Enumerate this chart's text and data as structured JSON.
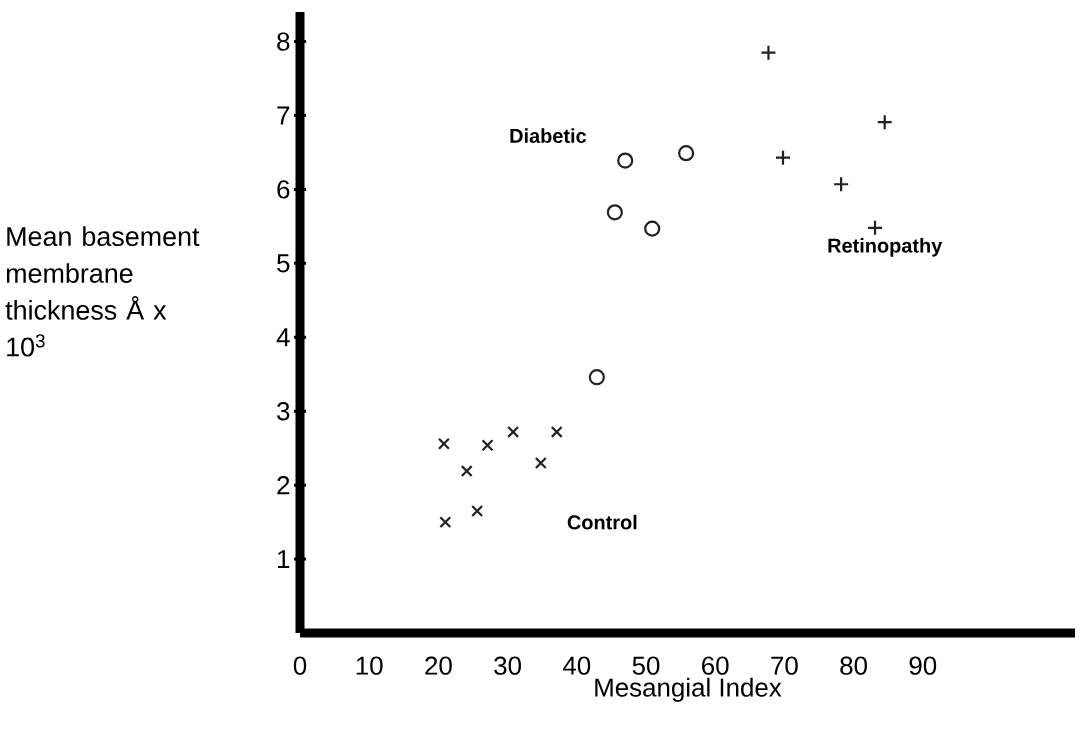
{
  "chart_data": {
    "type": "scatter",
    "xlabel": "Mesangial Index",
    "ylabel": "Mean basement membrane thickness Å x 10$^{3}$",
    "xlim": [
      0,
      112
    ],
    "ylim": [
      0,
      8.4
    ],
    "xticks": [
      0,
      10,
      20,
      30,
      40,
      50,
      60,
      70,
      80,
      90
    ],
    "yticks": [
      1,
      2,
      3,
      4,
      5,
      6,
      7,
      8
    ],
    "grid": false,
    "legend": false,
    "series": [
      {
        "name": "Control",
        "color": "#222222",
        "marker": "cross",
        "x": [
          20.8,
          24.1,
          27.1,
          30.8,
          37.1,
          34.8,
          21.0,
          25.6
        ],
        "values": [
          2.56,
          2.19,
          2.54,
          2.72,
          2.72,
          2.3,
          1.5,
          1.65
        ]
      },
      {
        "name": "Diabetic",
        "color": "#222222",
        "marker": "circle",
        "x": [
          42.9,
          47.0,
          55.8,
          45.5,
          50.9
        ],
        "values": [
          3.46,
          6.39,
          6.49,
          5.69,
          5.47
        ]
      },
      {
        "name": "Retinopathy",
        "color": "#222222",
        "marker": "plus",
        "x": [
          67.7,
          84.5,
          69.8,
          78.2,
          83.1
        ],
        "values": [
          7.85,
          6.91,
          6.43,
          6.07,
          5.48
        ]
      }
    ]
  }
}
